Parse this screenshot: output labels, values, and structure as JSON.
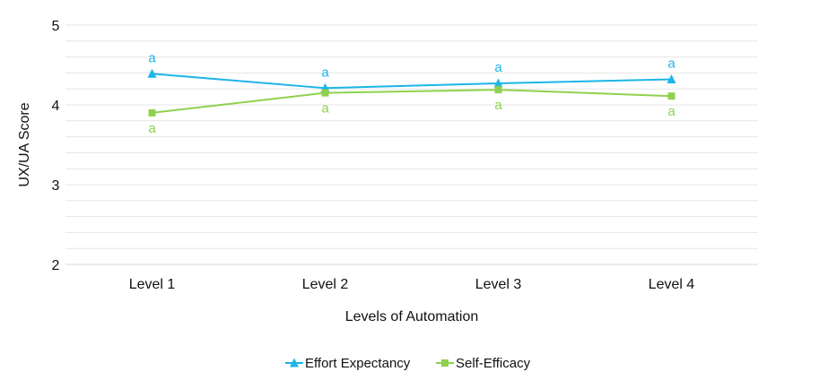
{
  "chart_data": {
    "type": "line",
    "xlabel": "Levels of Automation",
    "ylabel": "UX/UA Score",
    "categories": [
      "Level 1",
      "Level 2",
      "Level 3",
      "Level 4"
    ],
    "ylim": [
      2,
      5
    ],
    "yticks": [
      2,
      3,
      4,
      5
    ],
    "minor_gridlines_step": 0.2,
    "grid": true,
    "legend_position": "bottom",
    "series": [
      {
        "name": "Effort Expectancy",
        "values": [
          4.39,
          4.21,
          4.27,
          4.32
        ],
        "color": "#1cb5e8",
        "marker": "triangle",
        "annotations": [
          "a",
          "a",
          "a",
          "a"
        ],
        "annotation_position": "above"
      },
      {
        "name": "Self-Efficacy",
        "values": [
          3.9,
          4.15,
          4.19,
          4.11
        ],
        "color": "#8fd14f",
        "marker": "square",
        "annotations": [
          "a",
          "a",
          "a",
          "a"
        ],
        "annotation_position": "below"
      }
    ]
  }
}
